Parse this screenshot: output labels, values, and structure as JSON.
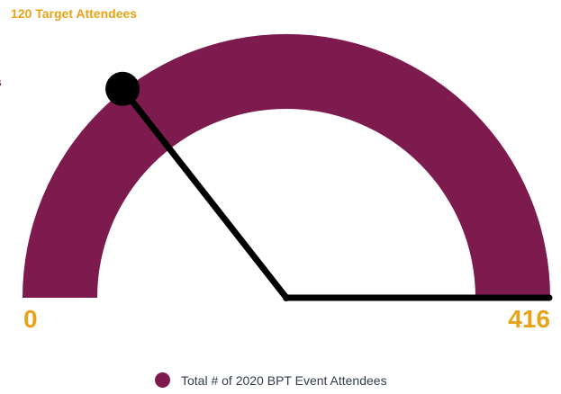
{
  "chart_data": {
    "type": "gauge",
    "min": 0,
    "max": 416,
    "value": 416,
    "target": 120,
    "target_label": "120 Target Attendees",
    "clipped_label_fragment": "s",
    "min_label": "0",
    "max_label": "416",
    "legend": [
      {
        "name": "Total # of 2020 BPT Event Attendees",
        "color": "#7D1B4E"
      }
    ],
    "colors": {
      "fill": "#7D1B4E",
      "labels": "#E8A317",
      "needle": "#000000"
    }
  }
}
